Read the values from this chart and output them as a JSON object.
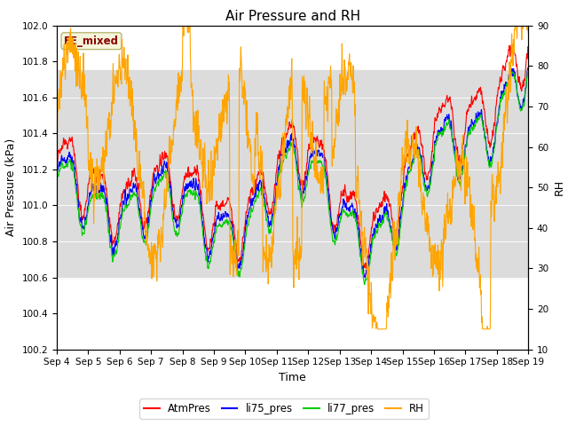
{
  "title": "Air Pressure and RH",
  "xlabel": "Time",
  "ylabel_left": "Air Pressure (kPa)",
  "ylabel_right": "RH",
  "ylim_left": [
    100.2,
    102.0
  ],
  "ylim_right": [
    10,
    90
  ],
  "yticks_left": [
    100.2,
    100.4,
    100.6,
    100.8,
    101.0,
    101.2,
    101.4,
    101.6,
    101.8,
    102.0
  ],
  "yticks_right": [
    10,
    20,
    30,
    40,
    50,
    60,
    70,
    80,
    90
  ],
  "xtick_labels": [
    "Sep 4",
    "Sep 5",
    "Sep 6",
    "Sep 7",
    "Sep 8",
    "Sep 9",
    "Sep 10",
    "Sep 11",
    "Sep 12",
    "Sep 13",
    "Sep 14",
    "Sep 15",
    "Sep 16",
    "Sep 17",
    "Sep 18",
    "Sep 19"
  ],
  "color_atm": "#ff0000",
  "color_li75": "#0000ff",
  "color_li77": "#00cc00",
  "color_rh": "#ffa500",
  "annotation_text": "EE_mixed",
  "annotation_color": "#8b0000",
  "annotation_bg": "#f5f5dc",
  "legend_entries": [
    "AtmPres",
    "li75_pres",
    "li77_pres",
    "RH"
  ],
  "bg_band_ylim": [
    100.6,
    101.75
  ],
  "bg_color": "#dcdcdc",
  "title_fontsize": 11,
  "axis_fontsize": 9,
  "tick_fontsize": 7.5
}
